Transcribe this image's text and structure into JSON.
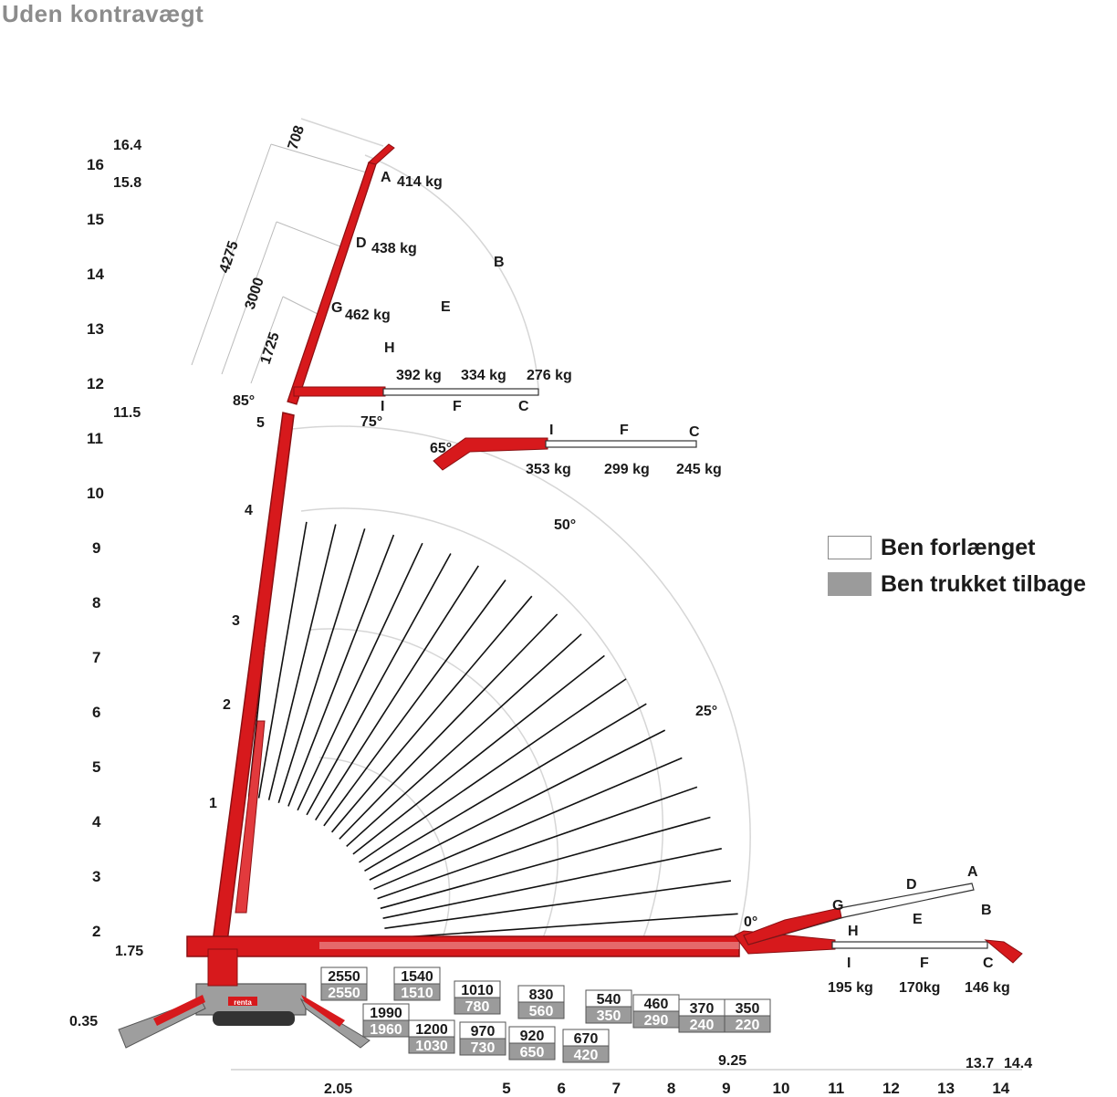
{
  "title": "Uden kontravægt",
  "colors": {
    "boom": "#d7191c",
    "boom_dark": "#8b0f12",
    "grid": "#d6d6d6",
    "ray": "#111111",
    "box_grey": "#9b9b9b",
    "title": "#8c8c8c"
  },
  "legend": [
    {
      "label": "Ben forlænget",
      "swatch": "white"
    },
    {
      "label": "Ben trukket tilbage",
      "swatch": "grey"
    }
  ],
  "y_axis": {
    "ticks": [
      "2",
      "3",
      "4",
      "5",
      "6",
      "7",
      "8",
      "9",
      "10",
      "11",
      "12",
      "13",
      "14",
      "15",
      "16"
    ],
    "extra": [
      "16.4",
      "15.8",
      "11.5",
      "1.75",
      "0.35"
    ]
  },
  "x_axis": {
    "ticks": [
      "5",
      "6",
      "7",
      "8",
      "9",
      "10",
      "11",
      "12",
      "13",
      "14"
    ],
    "extra": [
      "2.05",
      "9.25",
      "13.7",
      "14.4"
    ]
  },
  "dimensions": [
    "708",
    "4275",
    "3000",
    "1725"
  ],
  "boom_sections": [
    "1",
    "2",
    "3",
    "4",
    "5"
  ],
  "angles": [
    "85°",
    "75°",
    "65°",
    "50°",
    "25°",
    "0°"
  ],
  "arc_points": [
    "B",
    "E",
    "H"
  ],
  "jib_85": [
    {
      "point": "A",
      "load": "414 kg"
    },
    {
      "point": "D",
      "load": "438 kg"
    },
    {
      "point": "G",
      "load": "462 kg"
    }
  ],
  "jib_75": {
    "points": [
      "I",
      "F",
      "C"
    ],
    "loads": [
      "392 kg",
      "334 kg",
      "276 kg"
    ]
  },
  "jib_65": {
    "points": [
      "I",
      "F",
      "C"
    ],
    "loads": [
      "353 kg",
      "299 kg",
      "245 kg"
    ]
  },
  "jib_0": {
    "points": [
      "A",
      "D",
      "G",
      "B",
      "E",
      "H",
      "I",
      "F",
      "C"
    ],
    "loads": [
      "195 kg",
      "170kg",
      "146 kg"
    ]
  },
  "capacity_boxes": [
    {
      "ext": "2550",
      "ret": "2550"
    },
    {
      "ext": "1540",
      "ret": "1510"
    },
    {
      "ext": "1990",
      "ret": "1960"
    },
    {
      "ext": "1010",
      "ret": "780"
    },
    {
      "ext": "1200",
      "ret": "1030"
    },
    {
      "ext": "970",
      "ret": "730"
    },
    {
      "ext": "830",
      "ret": "560"
    },
    {
      "ext": "920",
      "ret": "650"
    },
    {
      "ext": "670",
      "ret": "420"
    },
    {
      "ext": "540",
      "ret": "350"
    },
    {
      "ext": "460",
      "ret": "290"
    },
    {
      "ext": "370",
      "ret": "240"
    },
    {
      "ext": "350",
      "ret": "220"
    }
  ],
  "logo": "renta"
}
